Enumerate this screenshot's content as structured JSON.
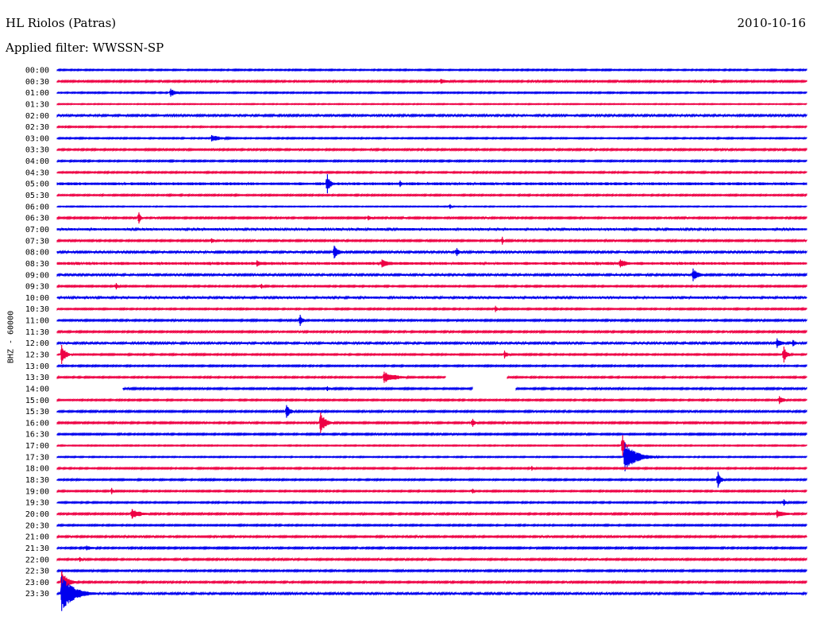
{
  "header": {
    "station": "HL Riolos (Patras)",
    "date": "2010-10-16",
    "filter": "Applied filter: WWSSN-SP"
  },
  "chart_data": {
    "type": "line",
    "title": "HL Riolos (Patras)",
    "subtitle": "Applied filter: WWSSN-SP",
    "date": "2010-10-16",
    "ylabel": "BHZ - 60000",
    "xlabel": "",
    "trace_minutes": 30,
    "row_labels": [
      "00:00",
      "00:30",
      "01:00",
      "01:30",
      "02:00",
      "02:30",
      "03:00",
      "03:30",
      "04:00",
      "04:30",
      "05:00",
      "05:30",
      "06:00",
      "06:30",
      "07:00",
      "07:30",
      "08:00",
      "08:30",
      "09:00",
      "09:30",
      "10:00",
      "10:30",
      "11:00",
      "11:30",
      "12:00",
      "12:30",
      "13:00",
      "13:30",
      "14:00",
      "15:00",
      "15:30",
      "16:00",
      "16:30",
      "17:00",
      "17:30",
      "18:00",
      "18:30",
      "19:00",
      "19:30",
      "20:00",
      "20:30",
      "21:00",
      "21:30",
      "22:00",
      "22:30",
      "23:00",
      "23:30"
    ],
    "colors": {
      "even": "#0000ee",
      "odd": "#ee0044"
    },
    "noise": [
      0.8,
      1.0,
      0.8,
      0.6,
      1.2,
      0.8,
      0.8,
      1.0,
      0.9,
      0.9,
      1.8,
      0.9,
      0.6,
      1.0,
      1.5,
      1.0,
      1.2,
      1.8,
      1.2,
      0.9,
      1.4,
      0.9,
      1.0,
      1.0,
      1.2,
      0.9,
      0.9,
      0.9,
      1.0,
      0.9,
      1.0,
      1.0,
      1.0,
      0.7,
      0.7,
      0.9,
      0.9,
      0.9,
      0.9,
      1.0,
      0.9,
      1.0,
      1.0,
      1.0,
      1.0,
      1.0,
      1.2
    ],
    "gaps": [
      {
        "row": 27,
        "from": 17.1,
        "to": 19.8
      },
      {
        "row": 28,
        "from": 0.0,
        "to": 2.9
      },
      {
        "row": 28,
        "from": 18.3,
        "to": 20.2
      }
    ],
    "events": [
      {
        "row": 1,
        "min": 16.9,
        "amp": 3,
        "dur": 0.8
      },
      {
        "row": 1,
        "min": 28.9,
        "amp": 2,
        "dur": 1.5
      },
      {
        "row": 2,
        "min": 5.0,
        "amp": 5,
        "dur": 0.6
      },
      {
        "row": 6,
        "min": 6.8,
        "amp": 4,
        "dur": 1.2
      },
      {
        "row": 10,
        "min": 11.9,
        "amp": 12,
        "dur": 0.3
      },
      {
        "row": 10,
        "min": 15.1,
        "amp": 4,
        "dur": 0.3
      },
      {
        "row": 12,
        "min": 17.3,
        "amp": 3,
        "dur": 0.2
      },
      {
        "row": 13,
        "min": 3.6,
        "amp": 7,
        "dur": 0.2
      },
      {
        "row": 13,
        "min": 13.7,
        "amp": 3,
        "dur": 0.5
      },
      {
        "row": 15,
        "min": 6.8,
        "amp": 3,
        "dur": 0.5
      },
      {
        "row": 15,
        "min": 19.6,
        "amp": 5,
        "dur": 0.1
      },
      {
        "row": 16,
        "min": 12.2,
        "amp": 8,
        "dur": 0.5
      },
      {
        "row": 16,
        "min": 17.6,
        "amp": 5,
        "dur": 0.3
      },
      {
        "row": 17,
        "min": 8.8,
        "amp": 4,
        "dur": 0.6
      },
      {
        "row": 17,
        "min": 14.3,
        "amp": 5,
        "dur": 1.0
      },
      {
        "row": 17,
        "min": 24.8,
        "amp": 5,
        "dur": 0.8
      },
      {
        "row": 18,
        "min": 28.0,
        "amp": 8,
        "dur": 0.6
      },
      {
        "row": 19,
        "min": 2.6,
        "amp": 4,
        "dur": 0.3
      },
      {
        "row": 19,
        "min": 9.0,
        "amp": 3,
        "dur": 0.2
      },
      {
        "row": 21,
        "min": 19.3,
        "amp": 4,
        "dur": 0.3
      },
      {
        "row": 22,
        "min": 10.7,
        "amp": 7,
        "dur": 0.3
      },
      {
        "row": 24,
        "min": 31.7,
        "amp": 6,
        "dur": 0.5
      },
      {
        "row": 24,
        "min": 32.4,
        "amp": 4,
        "dur": 0.4
      },
      {
        "row": 25,
        "min": 0.2,
        "amp": 12,
        "dur": 0.4
      },
      {
        "row": 25,
        "min": 19.7,
        "amp": 5,
        "dur": 0.4
      },
      {
        "row": 25,
        "min": 32.0,
        "amp": 10,
        "dur": 0.3
      },
      {
        "row": 27,
        "min": 14.4,
        "amp": 7,
        "dur": 1.2
      },
      {
        "row": 28,
        "min": 11.9,
        "amp": 3,
        "dur": 0.4
      },
      {
        "row": 29,
        "min": 31.8,
        "amp": 5,
        "dur": 0.5
      },
      {
        "row": 30,
        "min": 10.1,
        "amp": 8,
        "dur": 0.4
      },
      {
        "row": 31,
        "min": 11.6,
        "amp": 13,
        "dur": 0.5
      },
      {
        "row": 31,
        "min": 18.3,
        "amp": 5,
        "dur": 0.3
      },
      {
        "row": 33,
        "min": 24.9,
        "amp": 13,
        "dur": 0.2
      },
      {
        "row": 34,
        "min": 25.0,
        "amp": 18,
        "dur": 1.1
      },
      {
        "row": 35,
        "min": 20.9,
        "amp": 3,
        "dur": 0.3
      },
      {
        "row": 36,
        "min": 29.1,
        "amp": 10,
        "dur": 0.3
      },
      {
        "row": 37,
        "min": 2.4,
        "amp": 4,
        "dur": 0.2
      },
      {
        "row": 37,
        "min": 18.3,
        "amp": 3,
        "dur": 0.2
      },
      {
        "row": 38,
        "min": 32.0,
        "amp": 4,
        "dur": 0.3
      },
      {
        "row": 39,
        "min": 3.3,
        "amp": 6,
        "dur": 1.0
      },
      {
        "row": 39,
        "min": 31.7,
        "amp": 5,
        "dur": 1.0
      },
      {
        "row": 42,
        "min": 1.3,
        "amp": 3,
        "dur": 0.8
      },
      {
        "row": 43,
        "min": 1.0,
        "amp": 3,
        "dur": 0.3
      },
      {
        "row": 45,
        "min": 0.2,
        "amp": 14,
        "dur": 0.6
      },
      {
        "row": 46,
        "min": 0.2,
        "amp": 22,
        "dur": 1.2
      }
    ]
  }
}
